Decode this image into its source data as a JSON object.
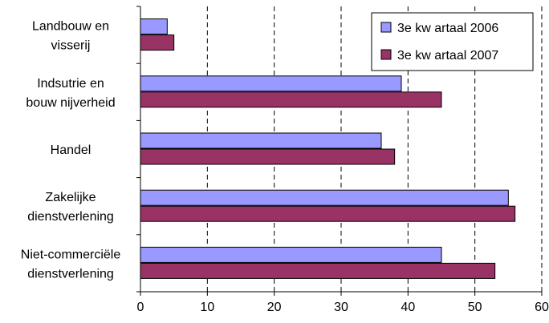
{
  "chart_data": {
    "type": "bar",
    "orientation": "horizontal",
    "title": "",
    "xlabel": "",
    "ylabel": "",
    "categories": [
      [
        "Landbouw en",
        "visserij"
      ],
      [
        "Indsutrie en",
        "bouw nijverheid"
      ],
      [
        "Handel"
      ],
      [
        "Zakelijke",
        "dienstverlening"
      ],
      [
        "Niet-commerciële",
        "dienstverlening"
      ]
    ],
    "series": [
      {
        "name": "3e kw artaal 2006",
        "color": "#9999ff",
        "values": [
          4,
          39,
          36,
          55,
          45
        ]
      },
      {
        "name": "3e kw artaal 2007",
        "color": "#993366",
        "values": [
          5,
          45,
          38,
          56,
          53
        ]
      }
    ],
    "xlim": [
      0,
      60
    ],
    "xticks": [
      0,
      10,
      20,
      30,
      40,
      50,
      60
    ],
    "grid": "vertical dashed",
    "legend_position": "top-right"
  }
}
